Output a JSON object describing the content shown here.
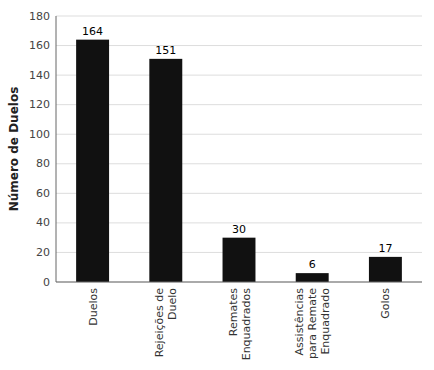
{
  "chart_data": {
    "type": "bar",
    "categories": [
      "Duelos",
      "Rejeições de\nDuelo",
      "Remates\nEnquadrados",
      "Assistências\npara Remate\nEnquadrado",
      "Golos"
    ],
    "values": [
      164,
      151,
      30,
      6,
      17
    ],
    "color": "#111111",
    "ylabel": "Número de Duelos",
    "ylim": [
      0,
      180
    ],
    "yticks": [
      0,
      20,
      40,
      60,
      80,
      100,
      120,
      140,
      160,
      180
    ],
    "grid": true,
    "data_labels": true
  }
}
